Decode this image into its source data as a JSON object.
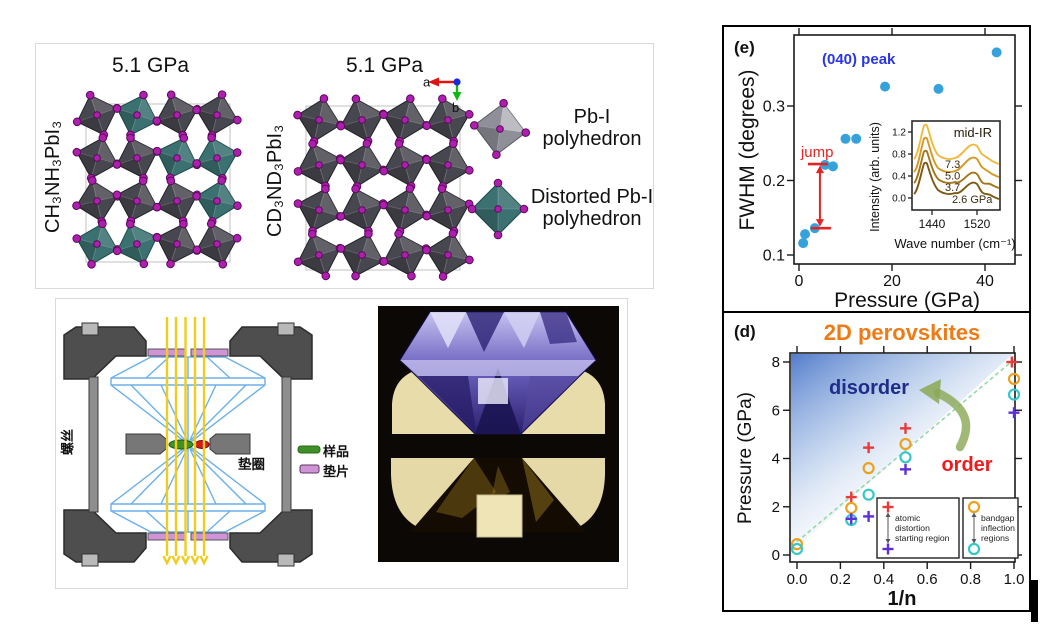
{
  "figure": {
    "structures_panel": {
      "left_pressure": "5.1 GPa",
      "right_pressure": "5.1 GPa",
      "left_formula": "CH₃NH₃PbI₃",
      "right_formula": "CD₃ND₃PbI₃",
      "axis_a": "a",
      "axis_b": "b",
      "legend": [
        {
          "label": "Pb-I polyhedron",
          "color": "#8f8f99"
        },
        {
          "label": "Distorted Pb-I polyhedron",
          "color": "#3b7170"
        }
      ],
      "atom_color": "#ad1fad"
    },
    "dac_panel": {
      "screw_label": "螺丝",
      "gasket_label": "垫圈",
      "sample_label": "样品",
      "spacer_label": "垫片",
      "sample_color": "#3f8f2a",
      "spacer_color": "#d093d6",
      "beam_color": "#f0cc1e",
      "diamond_outline_color": "#6cb0e8"
    }
  },
  "chart_data": [
    {
      "id": "e",
      "type": "scatter",
      "panel_label": "(e)",
      "peak_label": "(040) peak",
      "peak_label_color": "#2a35e8",
      "xlabel": "Pressure (GPa)",
      "ylabel": "FWHM (degrees)",
      "xticks": [
        "0",
        "20",
        "40"
      ],
      "yticks": [
        "0.1",
        "0.2",
        "0.3"
      ],
      "xlim": [
        -1,
        46.5
      ],
      "ylim": [
        0.088,
        0.395
      ],
      "grid": false,
      "point_color": "#36a2dc",
      "series_name": "(040) peak FWHM vs pressure",
      "points": [
        [
          0.9,
          0.116
        ],
        [
          1.3,
          0.128
        ],
        [
          3.4,
          0.136
        ],
        [
          5.6,
          0.221
        ],
        [
          7.3,
          0.219
        ],
        [
          10,
          0.256
        ],
        [
          12.3,
          0.256
        ],
        [
          18.5,
          0.326
        ],
        [
          30,
          0.323
        ],
        [
          42.5,
          0.372
        ]
      ],
      "jump": {
        "label": "jump",
        "color": "#e62222",
        "x_gpa": 4.5,
        "y_from": 0.136,
        "y_to": 0.222
      },
      "inset": {
        "title": "mid-IR",
        "xlabel": "Wave number (cm⁻¹)",
        "ylabel": "Intensity (arb. units)",
        "xticks": [
          "1440",
          "1520"
        ],
        "yticks": [
          "0.0",
          "0.4",
          "0.8",
          "1.2"
        ],
        "peaks_cm1": [
          1445,
          1545
        ],
        "curves": [
          {
            "label": "2.6 GPa",
            "color": "#7d5a12"
          },
          {
            "label": "3.7",
            "color": "#a4761a"
          },
          {
            "label": "5.0",
            "color": "#d29a22"
          },
          {
            "label": "7.3",
            "color": "#f0ba3e"
          }
        ]
      }
    },
    {
      "id": "d",
      "type": "scatter",
      "panel_label": "(d)",
      "title": "2D perovskites",
      "title_color": "#ee7b16",
      "xlabel": "1/n",
      "ylabel": "Pressure (GPa)",
      "xticks": [
        "0.0",
        "0.2",
        "0.4",
        "0.6",
        "0.8",
        "1.0"
      ],
      "yticks": [
        "0",
        "2",
        "4",
        "6",
        "8"
      ],
      "xlim": [
        -0.08,
        1.07
      ],
      "ylim": [
        -0.35,
        8.45
      ],
      "grid": false,
      "region_labels": [
        {
          "text": "disorder",
          "color": "#1f2d8a"
        },
        {
          "text": "order",
          "color": "#ee1c1c"
        }
      ],
      "series": [
        {
          "name": "atomic distortion starting region - upper bound",
          "marker": "plus",
          "color": "#e93a3a",
          "points": [
            [
              0.25,
              2.4
            ],
            [
              0.33,
              4.45
            ],
            [
              0.5,
              5.25
            ],
            [
              0.99,
              8.0
            ]
          ]
        },
        {
          "name": "bandgap inflection regions - upper",
          "marker": "circle",
          "color": "#eda21f",
          "points": [
            [
              0.0,
              0.45
            ],
            [
              0.25,
              1.95
            ],
            [
              0.33,
              3.6
            ],
            [
              0.5,
              4.6
            ],
            [
              1.0,
              7.3
            ]
          ]
        },
        {
          "name": "bandgap inflection regions - lower",
          "marker": "circle",
          "color": "#35c8c8",
          "points": [
            [
              0.0,
              0.25
            ],
            [
              0.25,
              1.45
            ],
            [
              0.33,
              2.5
            ],
            [
              0.5,
              4.05
            ],
            [
              1.0,
              6.65
            ]
          ]
        },
        {
          "name": "atomic distortion starting region - lower bound",
          "marker": "plus",
          "color": "#5d2fd6",
          "points": [
            [
              0.25,
              1.5
            ],
            [
              0.33,
              1.6
            ],
            [
              0.5,
              3.55
            ],
            [
              1.0,
              5.9
            ]
          ]
        }
      ],
      "trend_line": {
        "x": [
          0.0,
          1.0
        ],
        "y": [
          0.55,
          8.1
        ],
        "color": "#98d8a6",
        "dashed": true
      },
      "legend_boxes": [
        {
          "lines": [
            "atomic",
            "distortion",
            "starting region"
          ],
          "top": {
            "marker": "plus",
            "color": "#e93a3a"
          },
          "bottom": {
            "marker": "plus",
            "color": "#5d2fd6"
          }
        },
        {
          "lines": [
            "bandgap",
            "inflection",
            "regions"
          ],
          "top": {
            "marker": "circle",
            "color": "#eda21f"
          },
          "bottom": {
            "marker": "circle",
            "color": "#35c8c8"
          }
        }
      ]
    }
  ]
}
